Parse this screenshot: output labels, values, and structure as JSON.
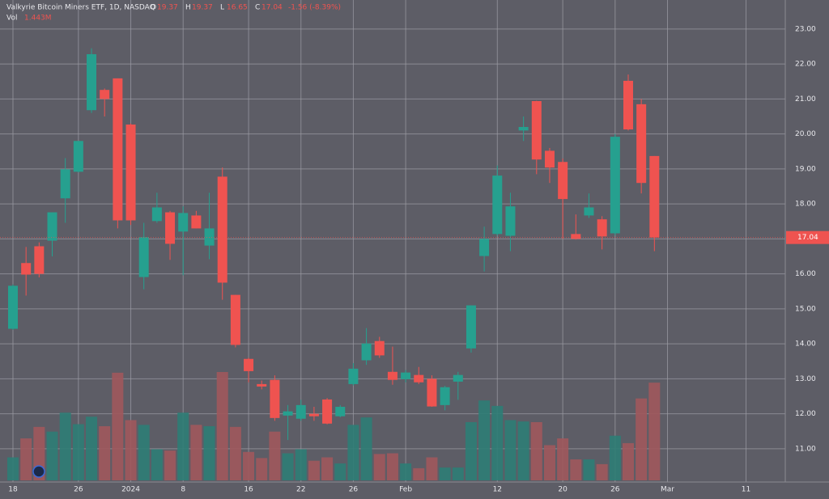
{
  "chart_data": {
    "type": "candlestick",
    "title": "Valkyrie Bitcoin Miners ETF, 1D, NASDAQ",
    "legend_fields": [
      "O",
      "H",
      "L",
      "C"
    ],
    "change_label": "-1.56 (-8.39%)",
    "volume_title": "Vol",
    "volume_label": "1.443M",
    "categories": [
      "18",
      null,
      null,
      null,
      null,
      "26",
      null,
      null,
      null,
      "2024",
      null,
      null,
      null,
      "8",
      null,
      null,
      null,
      null,
      "16",
      null,
      null,
      null,
      "22",
      null,
      null,
      null,
      "26",
      null,
      null,
      null,
      "Feb",
      null,
      null,
      null,
      null,
      null,
      null,
      "12",
      null,
      null,
      null,
      null,
      "20",
      null,
      null,
      null,
      "26",
      null,
      null,
      null,
      "Mar",
      null,
      null,
      null,
      null,
      null,
      "11",
      null,
      null
    ],
    "open": [
      14.43,
      16.31,
      16.79,
      16.95,
      18.16,
      18.92,
      20.68,
      21.26,
      21.59,
      20.27,
      15.91,
      17.51,
      17.76,
      17.21,
      17.67,
      16.81,
      18.78,
      15.4,
      13.57,
      12.85,
      12.97,
      11.95,
      11.86,
      12.0,
      12.41,
      11.93,
      12.85,
      13.53,
      14.08,
      13.2,
      12.99,
      13.11,
      13.0,
      12.25,
      12.92,
      13.87,
      16.51,
      17.14,
      17.09,
      20.1,
      20.94,
      19.52,
      19.2,
      17.14,
      17.67,
      17.56,
      17.16,
      21.52,
      20.85,
      19.37,
      null,
      null,
      null,
      null,
      null,
      null,
      null,
      null,
      null
    ],
    "high": [
      15.7,
      16.77,
      16.9,
      17.76,
      19.31,
      19.8,
      22.45,
      21.3,
      21.59,
      20.3,
      17.46,
      18.32,
      17.8,
      17.93,
      17.8,
      18.32,
      19.04,
      15.4,
      13.6,
      12.95,
      13.1,
      12.25,
      12.4,
      12.2,
      12.45,
      12.25,
      13.45,
      14.45,
      14.2,
      13.92,
      13.25,
      13.34,
      13.1,
      12.8,
      13.2,
      15.1,
      17.35,
      19.1,
      18.32,
      20.5,
      20.95,
      19.6,
      19.3,
      17.7,
      18.3,
      17.65,
      20.0,
      21.7,
      21.0,
      19.37,
      null,
      null,
      null,
      null,
      null,
      null,
      null,
      null,
      null
    ],
    "low": [
      14.4,
      15.38,
      15.9,
      16.5,
      17.46,
      18.9,
      20.6,
      20.5,
      17.3,
      17.4,
      15.56,
      17.46,
      16.4,
      15.96,
      17.3,
      16.42,
      15.26,
      13.9,
      12.9,
      12.7,
      11.8,
      11.25,
      11.8,
      11.8,
      11.7,
      11.9,
      12.81,
      13.4,
      13.6,
      12.83,
      12.9,
      12.85,
      12.2,
      12.1,
      12.4,
      13.75,
      16.07,
      17.1,
      16.65,
      19.8,
      18.85,
      18.6,
      17.0,
      16.98,
      17.6,
      16.7,
      17.1,
      20.1,
      18.3,
      16.65,
      null,
      null,
      null,
      null,
      null,
      null,
      null,
      null,
      null
    ],
    "close": [
      15.66,
      15.98,
      16.0,
      17.76,
      18.99,
      19.8,
      22.28,
      21.0,
      17.53,
      17.53,
      17.05,
      17.9,
      16.86,
      17.74,
      17.3,
      17.3,
      15.75,
      13.97,
      13.22,
      12.78,
      11.88,
      12.07,
      12.25,
      11.93,
      11.72,
      12.2,
      13.29,
      14.01,
      13.67,
      12.97,
      13.18,
      12.9,
      12.21,
      12.76,
      13.11,
      15.1,
      17.0,
      18.81,
      17.93,
      20.2,
      19.27,
      19.04,
      18.14,
      17.0,
      17.9,
      17.07,
      19.92,
      20.13,
      18.6,
      17.04,
      null,
      null,
      null,
      null,
      null,
      null,
      null,
      null,
      null
    ],
    "volume": [
      0.34,
      0.62,
      0.79,
      0.72,
      1.0,
      0.83,
      0.94,
      0.8,
      1.59,
      0.89,
      0.82,
      0.46,
      0.44,
      1.0,
      0.82,
      0.8,
      1.6,
      0.79,
      0.42,
      0.33,
      0.72,
      0.4,
      0.46,
      0.29,
      0.34,
      0.25,
      0.82,
      0.93,
      0.39,
      0.4,
      0.25,
      0.18,
      0.34,
      0.19,
      0.19,
      0.86,
      1.18,
      1.1,
      0.89,
      0.87,
      0.86,
      0.52,
      0.62,
      0.31,
      0.31,
      0.24,
      0.66,
      0.55,
      1.21,
      1.443,
      null,
      null,
      null,
      null,
      null,
      null,
      null,
      null,
      null
    ],
    "ylim": [
      10.05,
      23.83
    ],
    "yticks": [
      {
        "value": 11,
        "label": "11.00"
      },
      {
        "value": 12,
        "label": "12.00"
      },
      {
        "value": 13,
        "label": "13.00"
      },
      {
        "value": 14,
        "label": "14.00"
      },
      {
        "value": 15,
        "label": "15.00"
      },
      {
        "value": 16,
        "label": "16.00"
      },
      {
        "value": 17,
        "label": "17.00"
      },
      {
        "value": 18,
        "label": "18.00"
      },
      {
        "value": 19,
        "label": "19.00"
      },
      {
        "value": 20,
        "label": "20.00"
      },
      {
        "value": 21,
        "label": "21.00"
      },
      {
        "value": 22,
        "label": "22.00"
      },
      {
        "value": 23,
        "label": "23.00"
      }
    ],
    "grid": true,
    "up_color": "#26a08f",
    "down_color": "#ef5350",
    "volume_up_color": "#2e7d76",
    "volume_down_color": "#a0585c"
  }
}
